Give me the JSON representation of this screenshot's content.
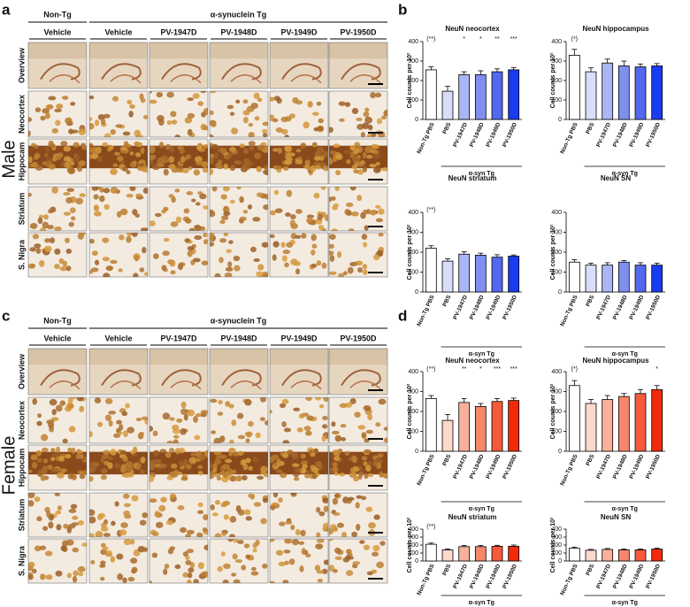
{
  "panels": [
    {
      "label": "a",
      "sex": "Male",
      "group_headers": [
        "Non-Tg",
        "α-synuclein Tg"
      ],
      "columns": [
        "Vehicle",
        "Vehicle",
        "PV-1947D",
        "PV-1948D",
        "PV-1949D",
        "PV-1950D"
      ],
      "rows": [
        "Overview",
        "Neocortex",
        "Hippocam",
        "Striatum",
        "S. Nigra"
      ]
    },
    {
      "label": "c",
      "sex": "Female",
      "group_headers": [
        "Non-Tg",
        "α-synuclein Tg"
      ],
      "columns": [
        "Vehicle",
        "Vehicle",
        "PV-1947D",
        "PV-1948D",
        "PV-1949D",
        "PV-1950D"
      ],
      "rows": [
        "Overview",
        "Neocortex",
        "Hippocam",
        "Striatum",
        "S. Nigra"
      ]
    }
  ],
  "chart_panel_labels": [
    "b",
    "d"
  ],
  "chart_data": [
    {
      "type": "bar",
      "title": "NeuN neocortex",
      "y_label": "Cell counts per 10²",
      "group_label": "α-syn Tg",
      "categories": [
        "Non-Tg PBS",
        "PBS",
        "PV-1947D",
        "PV-1948D",
        "PV-1949D",
        "PV-1950D"
      ],
      "values": [
        255,
        145,
        230,
        230,
        245,
        255
      ],
      "errors": [
        15,
        25,
        15,
        20,
        15,
        12
      ],
      "significance": [
        "(**)",
        null,
        "*",
        "*",
        "**",
        "***"
      ],
      "colors": [
        "#ffffff",
        "#d8defa",
        "#aab6f4",
        "#7f8ff0",
        "#5468ee",
        "#1a3cf0"
      ],
      "ylim": [
        0,
        400
      ],
      "yticks": [
        0,
        100,
        200,
        300,
        400
      ]
    },
    {
      "type": "bar",
      "title": "NeuN hippocampus",
      "y_label": "Cell counts per 10²",
      "group_label": "α-syn Tg",
      "categories": [
        "Non-Tg PBS",
        "PBS",
        "PV-1947D",
        "PV-1948D",
        "PV-1949D",
        "PV-1950D"
      ],
      "values": [
        330,
        245,
        290,
        275,
        270,
        275
      ],
      "errors": [
        30,
        20,
        20,
        25,
        15,
        12
      ],
      "significance": [
        "(*)",
        null,
        null,
        null,
        null,
        null
      ],
      "colors": [
        "#ffffff",
        "#d8defa",
        "#aab6f4",
        "#7f8ff0",
        "#5468ee",
        "#1a3cf0"
      ],
      "ylim": [
        0,
        400
      ],
      "yticks": [
        0,
        100,
        200,
        300,
        400
      ]
    },
    {
      "type": "bar",
      "title": "NeuN striatum",
      "y_label": "Cell counts per 10²",
      "group_label": "α-syn Tg",
      "categories": [
        "Non-Tg PBS",
        "PBS",
        "PV-1947D",
        "PV-1948D",
        "PV-1949D",
        "PV-1950D"
      ],
      "values": [
        220,
        155,
        190,
        185,
        175,
        180
      ],
      "errors": [
        12,
        12,
        12,
        10,
        12,
        6
      ],
      "significance": [
        "(**)",
        null,
        null,
        null,
        null,
        null
      ],
      "colors": [
        "#ffffff",
        "#d8defa",
        "#aab6f4",
        "#7f8ff0",
        "#5468ee",
        "#1a3cf0"
      ],
      "ylim": [
        0,
        400
      ],
      "yticks": [
        0,
        100,
        200,
        300,
        400
      ]
    },
    {
      "type": "bar",
      "title": "NeuN SN",
      "y_label": "Cell counts per 10²",
      "group_label": "α-syn Tg",
      "categories": [
        "Non-Tg PBS",
        "PBS",
        "PV-1947D",
        "PV-1948D",
        "PV-1949D",
        "PV-1950D"
      ],
      "values": [
        150,
        135,
        135,
        150,
        135,
        135
      ],
      "errors": [
        12,
        10,
        12,
        8,
        12,
        10
      ],
      "significance": [
        null,
        null,
        null,
        null,
        null,
        null
      ],
      "colors": [
        "#ffffff",
        "#d8defa",
        "#aab6f4",
        "#7f8ff0",
        "#5468ee",
        "#1a3cf0"
      ],
      "ylim": [
        0,
        400
      ],
      "yticks": [
        0,
        100,
        200,
        300,
        400
      ]
    },
    {
      "type": "bar",
      "title": "NeuN neocortex",
      "y_label": "Cell counts per 10²",
      "group_label": "α-syn Tg",
      "categories": [
        "Non-Tg PBS",
        "PBS",
        "PV-1947D",
        "PV-1948D",
        "PV-1949D",
        "PV-1950D"
      ],
      "values": [
        265,
        155,
        245,
        225,
        250,
        255
      ],
      "errors": [
        15,
        30,
        20,
        15,
        15,
        12
      ],
      "significance": [
        "(**)",
        null,
        "**",
        "*",
        "***",
        "***"
      ],
      "colors": [
        "#ffffff",
        "#fcd9cc",
        "#f9b09a",
        "#f7876a",
        "#f55a3a",
        "#f22a0a"
      ],
      "ylim": [
        0,
        400
      ],
      "yticks": [
        0,
        100,
        200,
        300,
        400
      ]
    },
    {
      "type": "bar",
      "title": "NeuN hippocampus",
      "y_label": "Cell counts per 10²",
      "group_label": "α-syn Tg",
      "categories": [
        "Non-Tg PBS",
        "PBS",
        "PV-1947D",
        "PV-1948D",
        "PV-1949D",
        "PV-1950D"
      ],
      "values": [
        330,
        240,
        260,
        275,
        290,
        310
      ],
      "errors": [
        25,
        20,
        20,
        15,
        20,
        20
      ],
      "significance": [
        "(*)",
        null,
        null,
        null,
        null,
        "*"
      ],
      "colors": [
        "#ffffff",
        "#fcd9cc",
        "#f9b09a",
        "#f7876a",
        "#f55a3a",
        "#f22a0a"
      ],
      "ylim": [
        0,
        400
      ],
      "yticks": [
        0,
        100,
        200,
        300,
        400
      ]
    },
    {
      "type": "bar",
      "title": "NeuN striatum",
      "y_label": "Cell counts per 10²",
      "group_label": "α-syn Tg",
      "categories": [
        "Non-Tg PBS",
        "PBS",
        "PV-1947D",
        "PV-1948D",
        "PV-1949D",
        "PV-1950D"
      ],
      "values": [
        210,
        140,
        180,
        180,
        185,
        185
      ],
      "errors": [
        15,
        12,
        15,
        15,
        12,
        15
      ],
      "significance": [
        "(**)",
        null,
        null,
        null,
        null,
        null
      ],
      "colors": [
        "#ffffff",
        "#fcd9cc",
        "#f9b09a",
        "#f7876a",
        "#f55a3a",
        "#f22a0a"
      ],
      "ylim": [
        0,
        400
      ],
      "yticks": [
        0,
        100,
        200,
        300,
        400
      ]
    },
    {
      "type": "bar",
      "title": "NeuN SN",
      "y_label": "Cell counts per 10²",
      "group_label": "α-syn Tg",
      "categories": [
        "Non-Tg PBS",
        "PBS",
        "PV-1947D",
        "PV-1948D",
        "PV-1949D",
        "PV-1950D"
      ],
      "values": [
        160,
        135,
        145,
        140,
        140,
        150
      ],
      "errors": [
        15,
        10,
        12,
        10,
        10,
        12
      ],
      "significance": [
        null,
        null,
        null,
        null,
        null,
        null
      ],
      "colors": [
        "#ffffff",
        "#fcd9cc",
        "#f9b09a",
        "#f7876a",
        "#f55a3a",
        "#f22a0a"
      ],
      "ylim": [
        0,
        400
      ],
      "yticks": [
        0,
        100,
        200,
        300,
        400
      ]
    }
  ]
}
